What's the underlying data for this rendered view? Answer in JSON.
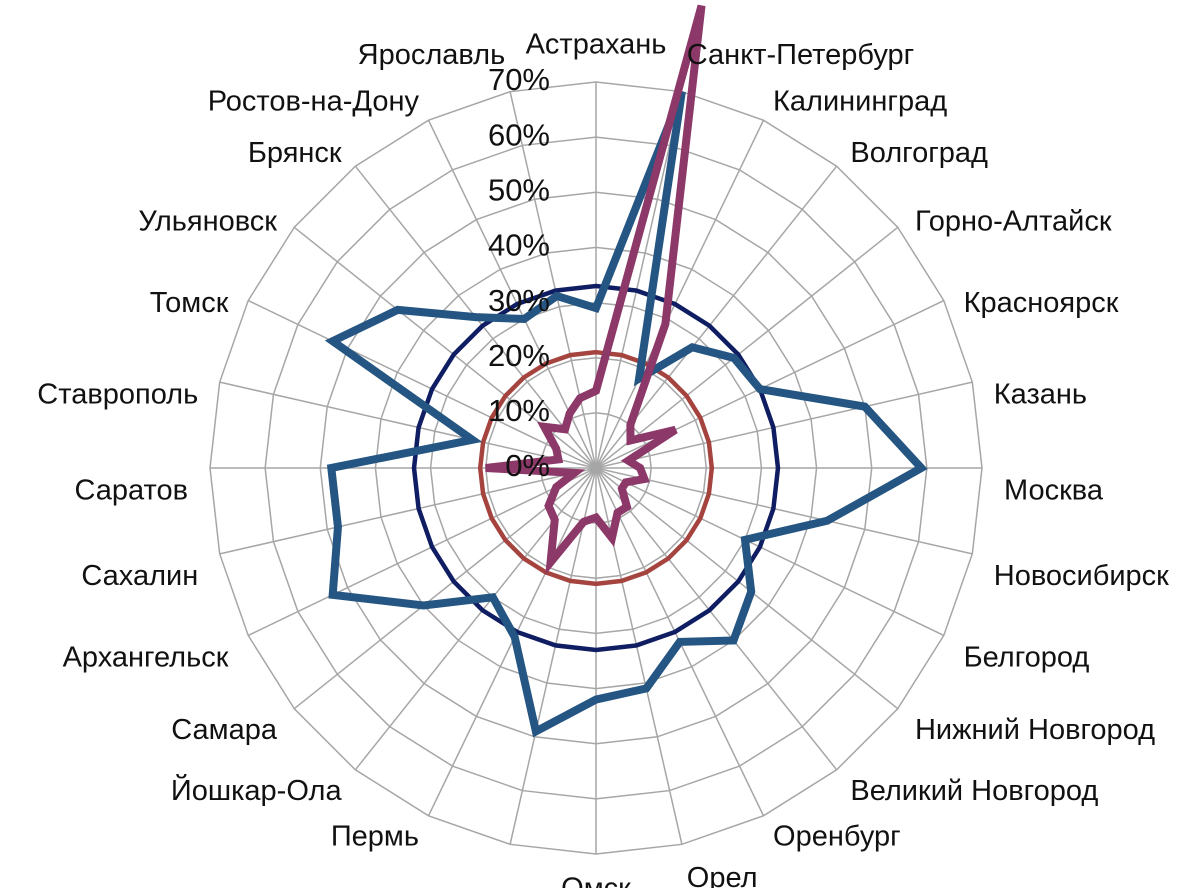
{
  "chart_data": {
    "type": "radar",
    "categories": [
      "Астрахань",
      "Санкт-Петербург",
      "Калининград",
      "Волгоград",
      "Горно-Алтайск",
      "Красноярск",
      "Казань",
      "Москва",
      "Новосибирск",
      "Белгород",
      "Нижний Новгород",
      "Великий Новгород",
      "Оренбург",
      "Орел",
      "Омск",
      null,
      "Пермь",
      "Йошкар-Ола",
      "Самара",
      "Архангельск",
      "Сахалин",
      "Саратов",
      "Ставрополь",
      "Томск",
      "Ульяновск",
      "Брянск",
      "Ростов-на-Дону",
      "Ярославль"
    ],
    "series": [
      {
        "color": "#0f1d62",
        "values": [
          33,
          33,
          33,
          33,
          33,
          33,
          33,
          33,
          33,
          33,
          33,
          33,
          33,
          33,
          33,
          33,
          33,
          33,
          33,
          33,
          33,
          33,
          33,
          33,
          33,
          33,
          33,
          33
        ]
      },
      {
        "color": "#a5443f",
        "values": [
          21,
          21,
          21,
          21,
          21,
          21,
          21,
          21,
          21,
          21,
          21,
          21,
          21,
          21,
          21,
          21,
          21,
          21,
          21,
          21,
          21,
          21,
          21,
          21,
          21,
          21,
          21,
          21
        ]
      },
      {
        "color": "#255582",
        "values": [
          29,
          70,
          18,
          28,
          32,
          33,
          50,
          59,
          43,
          30,
          36,
          40,
          35,
          41,
          42,
          49,
          34,
          30,
          40,
          53,
          48,
          48,
          23,
          53,
          46,
          35,
          30,
          32
        ]
      },
      {
        "color": "#8c3868",
        "values": [
          14,
          86,
          29,
          10,
          8,
          16,
          6,
          8,
          9,
          6,
          6,
          9,
          9,
          13,
          9,
          10,
          19,
          12,
          11,
          8,
          4,
          20,
          7,
          8,
          12,
          9,
          11,
          13
        ]
      }
    ],
    "ylim": [
      0,
      70
    ],
    "yticks": [
      {
        "value": 0,
        "label": "0%"
      },
      {
        "value": 10,
        "label": "10%"
      },
      {
        "value": 20,
        "label": "20%"
      },
      {
        "value": 30,
        "label": "30%"
      },
      {
        "value": 40,
        "label": "40%"
      },
      {
        "value": 50,
        "label": "50%"
      },
      {
        "value": 60,
        "label": "60%"
      },
      {
        "value": 70,
        "label": "70%"
      }
    ],
    "grid": true
  }
}
